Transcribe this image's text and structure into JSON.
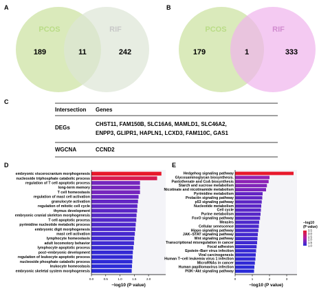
{
  "panels": {
    "a": {
      "letter": "A",
      "set1": "PCOS",
      "set2": "RIF",
      "only1": "189",
      "both": "11",
      "only2": "242",
      "colors": {
        "set1": "#cde3a4",
        "set2": "#dde6d5",
        "label1": "#b9dc86",
        "label2": "#c8c8c8"
      }
    },
    "b": {
      "letter": "B",
      "set1": "PCOS",
      "set2": "RIF",
      "only1": "179",
      "both": "1",
      "only2": "333",
      "colors": {
        "set1": "#cde3a4",
        "set2": "#f0b4ec",
        "label1": "#b9dc86",
        "label2": "#d28cd0"
      }
    },
    "c": {
      "letter": "C",
      "header": {
        "col1": "Intersection",
        "col2": "Genes"
      },
      "rows": [
        {
          "label": "DEGs",
          "lines": [
            "CHST11, FAM150B, SLC16A6, MAMLD1, SLC46A2,",
            "ENPP3, GLIPR1, HAPLN1, LCXD3, FAM110C, GAS1"
          ]
        },
        {
          "label": "WGCNA",
          "lines": [
            "CCND2"
          ]
        }
      ]
    }
  },
  "chart_data": [
    {
      "type": "bar",
      "panel": "D",
      "orientation": "horizontal",
      "xlabel": "−log10 (P value)",
      "xlim": [
        0,
        2.6
      ],
      "xticks": [
        "0.0",
        "0.5",
        "1.0",
        "1.5",
        "2.0"
      ],
      "categories": [
        "embryonic viscerocranium morphogenesis",
        "nucleoside triphosphate catabolic process",
        "regulation of T cell apoptotic process",
        "long-term memory",
        "T cell homeostasis",
        "regulation of mast cell activation",
        "granulocyte activation",
        "regulation of mitotic cell cycle",
        "thymus development",
        "embryonic cranial skeleton morphogenesis",
        "T cell apoptotic process",
        "pyrimidine nucleotide metabolic process",
        "embryonic digit morphogenesis",
        "mast cell activation",
        "lymphocyte homeostasis",
        "adult locomotory behavior",
        "lymphocyte apoptotic process",
        "post−embryonic development",
        "regulation of leukocyte apoptotic process",
        "nucleoside phosphate catabolic process",
        "leukocyte homeostasis",
        "embryonic skeletal system morphogenesis"
      ],
      "values": [
        2.45,
        2.3,
        1.7,
        1.7,
        1.7,
        1.65,
        1.63,
        1.61,
        1.6,
        1.58,
        1.57,
        1.55,
        1.54,
        1.52,
        1.5,
        1.49,
        1.47,
        1.45,
        1.44,
        1.43,
        1.42,
        1.41
      ]
    },
    {
      "type": "bar",
      "panel": "E",
      "orientation": "horizontal",
      "xlabel": "−log10 (P value)",
      "xlim": [
        0,
        3.6
      ],
      "xticks": [
        "0",
        "1",
        "2",
        "3"
      ],
      "legend": {
        "title_line1": "−log10",
        "title_line2": "(P value)",
        "ticks": [
          "3.5",
          "3.0",
          "2.5",
          "2.0",
          "1.5",
          "1.0"
        ],
        "placement": "right"
      },
      "categories": [
        "Hedgehog signaling pathway",
        "Glycosaminoglycan biosynthesis.",
        "Pantothenate and CoA biosynthesis",
        "Starch and sucrose metabolism",
        "Nicotinate and nicotinamide metabolism",
        "Pyrimidine metabolism",
        "Prolactin signaling pathway",
        "p53 signaling pathway",
        "Nucleotide metabolism",
        "Cell cycle",
        "Purine metabolism",
        "FoxO signaling pathway",
        "Measles",
        "Cellular senescence",
        "Hippo signaling pathway",
        "JAK−STAT signaling pathway",
        "Wnt signaling pathway",
        "Transcriptional misregulation in cancer",
        "Focal adhesion",
        "Epstein−Barr virus infection",
        "Viral carcinogenesis",
        "Human T−cell leukemia virus 1 infection",
        "MicroRNAs in cancer",
        "Human papillomavirus infection",
        "PI3K−Akt signaling pathway"
      ],
      "values": [
        3.4,
        2.0,
        1.95,
        1.85,
        1.8,
        1.6,
        1.58,
        1.55,
        1.52,
        1.5,
        1.48,
        1.45,
        1.4,
        1.38,
        1.35,
        1.32,
        1.3,
        1.28,
        1.25,
        1.22,
        1.2,
        1.18,
        1.15,
        1.12,
        1.1
      ]
    }
  ]
}
